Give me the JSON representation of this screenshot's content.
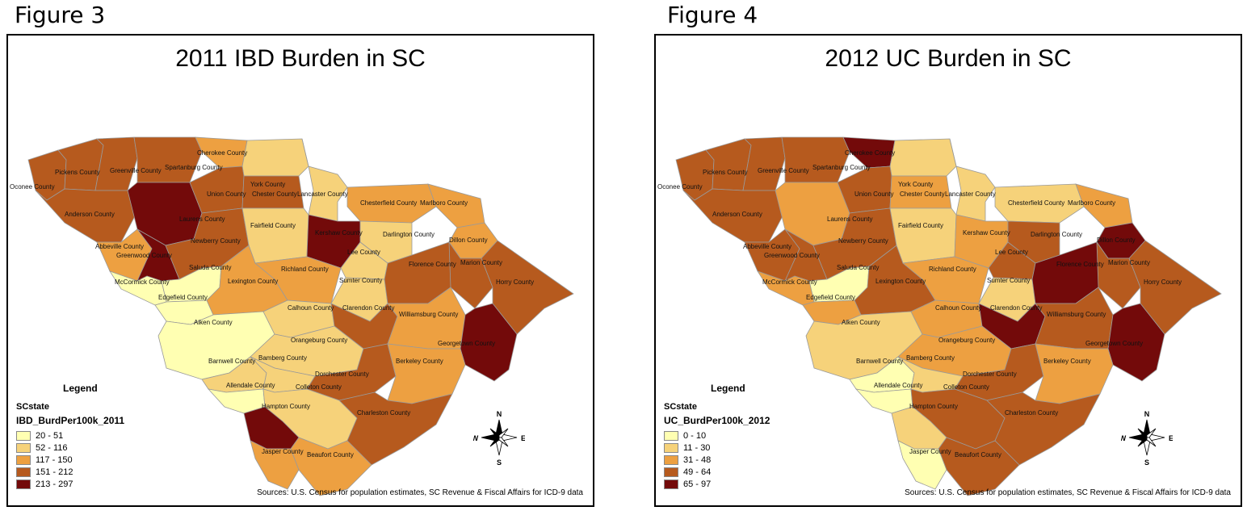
{
  "figures": [
    {
      "caption": "Figure 3",
      "title": "2011 IBD Burden in SC",
      "legend_title": "Legend",
      "layer": "SCstate",
      "field": "IBD_BurdPer100k_2011",
      "classes": [
        {
          "label": "20 - 51",
          "color": "#ffffb2"
        },
        {
          "label": "52 - 116",
          "color": "#f6d27a"
        },
        {
          "label": "117 - 150",
          "color": "#eda041"
        },
        {
          "label": "151 - 212",
          "color": "#b65a1e"
        },
        {
          "label": "213 - 297",
          "color": "#730a0a"
        }
      ],
      "source": "Sources: U.S. Census for population estimates, SC Revenue & Fiscal Affairs for ICD-9 data",
      "counties": {
        "Oconee County": 3,
        "Pickens County": 3,
        "Greenville County": 3,
        "Spartanburg County": 3,
        "Cherokee County": 2,
        "York County": 1,
        "Anderson County": 3,
        "Laurens County": 4,
        "Union County": 3,
        "Chester County": 3,
        "Lancaster County": 1,
        "Chesterfield County": 2,
        "Marlboro County": 2,
        "Abbeville County": 2,
        "Greenwood County": 4,
        "Newberry County": 3,
        "Fairfield County": 1,
        "Kershaw County": 4,
        "Darlington County": 1,
        "Dillon County": 2,
        "McCormick County": 0,
        "Saluda County": 0,
        "Edgefield County": 0,
        "Lexington County": 2,
        "Richland County": 2,
        "Lee County": 1,
        "Sumter County": 1,
        "Florence County": 3,
        "Marion County": 3,
        "Horry County": 3,
        "Aiken County": 0,
        "Calhoun County": 1,
        "Clarendon County": 3,
        "Williamsburg County": 2,
        "Georgetown County": 4,
        "Orangeburg County": 1,
        "Barnwell County": 1,
        "Bamberg County": 1,
        "Dorchester County": 3,
        "Berkeley County": 2,
        "Allendale County": 0,
        "Colleton County": 1,
        "Hampton County": 4,
        "Charleston County": 3,
        "Jasper County": 2,
        "Beaufort County": 2
      },
      "compass": {
        "n": "N",
        "s": "S",
        "e": "E",
        "w": "W"
      }
    },
    {
      "caption": "Figure 4",
      "title": "2012 UC Burden in SC",
      "legend_title": "Legend",
      "layer": "SCstate",
      "field": "UC_BurdPer100k_2012",
      "classes": [
        {
          "label": "0 - 10",
          "color": "#ffffb2"
        },
        {
          "label": "11 - 30",
          "color": "#f6d27a"
        },
        {
          "label": "31 - 48",
          "color": "#eda041"
        },
        {
          "label": "49 - 64",
          "color": "#b65a1e"
        },
        {
          "label": "65 - 97",
          "color": "#730a0a"
        }
      ],
      "source": "Sources: U.S. Census for population estimates, SC Revenue & Fiscal Affairs for ICD-9 data",
      "counties": {
        "Oconee County": 3,
        "Pickens County": 3,
        "Greenville County": 3,
        "Spartanburg County": 3,
        "Cherokee County": 4,
        "York County": 1,
        "Anderson County": 3,
        "Laurens County": 2,
        "Union County": 3,
        "Chester County": 2,
        "Lancaster County": 1,
        "Chesterfield County": 1,
        "Marlboro County": 2,
        "Abbeville County": 3,
        "Greenwood County": 3,
        "Newberry County": 3,
        "Fairfield County": 1,
        "Kershaw County": 2,
        "Darlington County": 3,
        "Dillon County": 4,
        "McCormick County": 2,
        "Saluda County": 0,
        "Edgefield County": 2,
        "Lexington County": 3,
        "Richland County": 2,
        "Lee County": 3,
        "Sumter County": 1,
        "Florence County": 4,
        "Marion County": 3,
        "Horry County": 3,
        "Aiken County": 1,
        "Calhoun County": 2,
        "Clarendon County": 4,
        "Williamsburg County": 3,
        "Georgetown County": 4,
        "Orangeburg County": 2,
        "Barnwell County": 0,
        "Bamberg County": 1,
        "Dorchester County": 3,
        "Berkeley County": 2,
        "Allendale County": 0,
        "Colleton County": 3,
        "Hampton County": 1,
        "Charleston County": 3,
        "Jasper County": 0,
        "Beaufort County": 3
      },
      "compass": {
        "n": "N",
        "s": "S",
        "e": "E",
        "w": "W"
      }
    }
  ]
}
